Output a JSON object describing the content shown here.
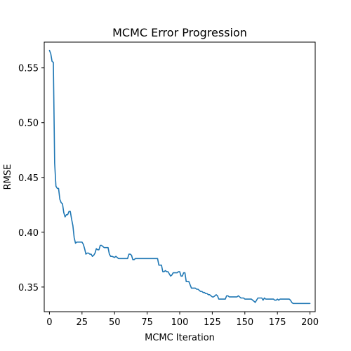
{
  "chart_data": {
    "type": "line",
    "title": "MCMC Error Progression",
    "xlabel": "MCMC Iteration",
    "ylabel": "RMSE",
    "xlim": [
      -4,
      204
    ],
    "ylim": [
      0.3275,
      0.5735
    ],
    "xticks": [
      0,
      25,
      50,
      75,
      100,
      125,
      150,
      175,
      200
    ],
    "yticks": [
      0.35,
      0.4,
      0.45,
      0.5,
      0.55
    ],
    "ytick_labels": [
      "0.35",
      "0.40",
      "0.45",
      "0.50",
      "0.55"
    ],
    "grid": false,
    "series": [
      {
        "color": "#1f77b4",
        "points": [
          [
            0,
            0.566
          ],
          [
            1,
            0.563
          ],
          [
            2,
            0.556
          ],
          [
            3,
            0.555
          ],
          [
            4,
            0.463
          ],
          [
            5,
            0.442
          ],
          [
            6,
            0.44
          ],
          [
            7,
            0.44
          ],
          [
            8,
            0.43
          ],
          [
            9,
            0.427
          ],
          [
            10,
            0.426
          ],
          [
            11,
            0.418
          ],
          [
            12,
            0.414
          ],
          [
            13,
            0.416
          ],
          [
            14,
            0.416
          ],
          [
            15,
            0.419
          ],
          [
            16,
            0.419
          ],
          [
            17,
            0.412
          ],
          [
            18,
            0.406
          ],
          [
            19,
            0.395
          ],
          [
            20,
            0.39
          ],
          [
            21,
            0.391
          ],
          [
            22,
            0.391
          ],
          [
            23,
            0.391
          ],
          [
            24,
            0.391
          ],
          [
            25,
            0.391
          ],
          [
            26,
            0.389
          ],
          [
            27,
            0.385
          ],
          [
            28,
            0.38
          ],
          [
            29,
            0.381
          ],
          [
            30,
            0.381
          ],
          [
            31,
            0.38
          ],
          [
            32,
            0.38
          ],
          [
            33,
            0.378
          ],
          [
            34,
            0.379
          ],
          [
            35,
            0.381
          ],
          [
            36,
            0.385
          ],
          [
            37,
            0.384
          ],
          [
            38,
            0.384
          ],
          [
            39,
            0.388
          ],
          [
            40,
            0.388
          ],
          [
            41,
            0.387
          ],
          [
            42,
            0.386
          ],
          [
            43,
            0.386
          ],
          [
            44,
            0.386
          ],
          [
            45,
            0.386
          ],
          [
            46,
            0.38
          ],
          [
            47,
            0.378
          ],
          [
            48,
            0.378
          ],
          [
            50,
            0.377
          ],
          [
            51,
            0.378
          ],
          [
            52,
            0.377
          ],
          [
            53,
            0.376
          ],
          [
            55,
            0.376
          ],
          [
            60,
            0.376
          ],
          [
            61,
            0.38
          ],
          [
            62,
            0.38
          ],
          [
            63,
            0.379
          ],
          [
            64,
            0.375
          ],
          [
            65,
            0.375
          ],
          [
            66,
            0.376
          ],
          [
            68,
            0.376
          ],
          [
            70,
            0.376
          ],
          [
            75,
            0.376
          ],
          [
            80,
            0.376
          ],
          [
            82,
            0.376
          ],
          [
            83,
            0.376
          ],
          [
            84,
            0.37
          ],
          [
            85,
            0.37
          ],
          [
            86,
            0.37
          ],
          [
            87,
            0.364
          ],
          [
            88,
            0.364
          ],
          [
            89,
            0.365
          ],
          [
            90,
            0.364
          ],
          [
            91,
            0.364
          ],
          [
            92,
            0.362
          ],
          [
            93,
            0.36
          ],
          [
            94,
            0.361
          ],
          [
            95,
            0.363
          ],
          [
            96,
            0.363
          ],
          [
            97,
            0.363
          ],
          [
            98,
            0.363
          ],
          [
            99,
            0.364
          ],
          [
            100,
            0.364
          ],
          [
            101,
            0.36
          ],
          [
            102,
            0.36
          ],
          [
            103,
            0.363
          ],
          [
            104,
            0.363
          ],
          [
            105,
            0.355
          ],
          [
            106,
            0.355
          ],
          [
            107,
            0.355
          ],
          [
            108,
            0.352
          ],
          [
            109,
            0.349
          ],
          [
            110,
            0.349
          ],
          [
            111,
            0.349
          ],
          [
            112,
            0.349
          ],
          [
            113,
            0.348
          ],
          [
            114,
            0.348
          ],
          [
            115,
            0.347
          ],
          [
            116,
            0.346
          ],
          [
            117,
            0.346
          ],
          [
            118,
            0.345
          ],
          [
            119,
            0.345
          ],
          [
            120,
            0.344
          ],
          [
            121,
            0.344
          ],
          [
            122,
            0.343
          ],
          [
            123,
            0.343
          ],
          [
            124,
            0.342
          ],
          [
            125,
            0.341
          ],
          [
            126,
            0.341
          ],
          [
            127,
            0.342
          ],
          [
            128,
            0.343
          ],
          [
            129,
            0.342
          ],
          [
            130,
            0.339
          ],
          [
            131,
            0.339
          ],
          [
            132,
            0.339
          ],
          [
            133,
            0.339
          ],
          [
            134,
            0.339
          ],
          [
            135,
            0.339
          ],
          [
            136,
            0.342
          ],
          [
            137,
            0.342
          ],
          [
            138,
            0.341
          ],
          [
            139,
            0.341
          ],
          [
            140,
            0.341
          ],
          [
            142,
            0.341
          ],
          [
            143,
            0.341
          ],
          [
            144,
            0.341
          ],
          [
            145,
            0.342
          ],
          [
            146,
            0.341
          ],
          [
            147,
            0.34
          ],
          [
            148,
            0.34
          ],
          [
            149,
            0.34
          ],
          [
            150,
            0.339
          ],
          [
            151,
            0.339
          ],
          [
            152,
            0.339
          ],
          [
            155,
            0.339
          ],
          [
            156,
            0.338
          ],
          [
            157,
            0.337
          ],
          [
            158,
            0.336
          ],
          [
            159,
            0.338
          ],
          [
            160,
            0.34
          ],
          [
            162,
            0.34
          ],
          [
            163,
            0.34
          ],
          [
            164,
            0.338
          ],
          [
            165,
            0.34
          ],
          [
            166,
            0.339
          ],
          [
            168,
            0.339
          ],
          [
            170,
            0.339
          ],
          [
            172,
            0.339
          ],
          [
            173,
            0.338
          ],
          [
            174,
            0.338
          ],
          [
            175,
            0.339
          ],
          [
            176,
            0.338
          ],
          [
            177,
            0.339
          ],
          [
            178,
            0.339
          ],
          [
            180,
            0.339
          ],
          [
            181,
            0.339
          ],
          [
            182,
            0.339
          ],
          [
            183,
            0.339
          ],
          [
            184,
            0.339
          ],
          [
            185,
            0.338
          ],
          [
            186,
            0.336
          ],
          [
            187,
            0.335
          ],
          [
            188,
            0.335
          ],
          [
            190,
            0.335
          ],
          [
            195,
            0.335
          ],
          [
            200,
            0.335
          ]
        ]
      }
    ]
  }
}
